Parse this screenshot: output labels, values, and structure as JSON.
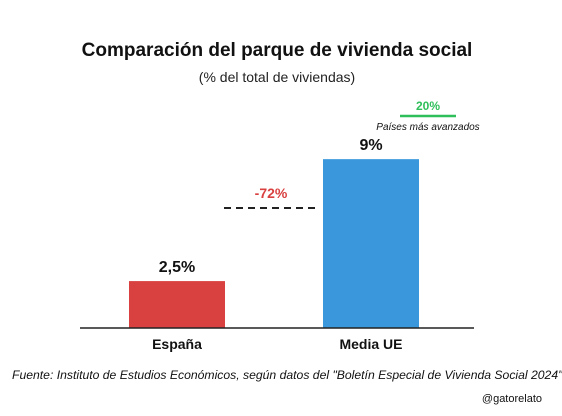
{
  "chart_data": {
    "type": "bar",
    "title": "Comparación del parque de vivienda social",
    "subtitle": "(% del total de viviendas)",
    "categories": [
      "España",
      "Media UE"
    ],
    "values": [
      2.5,
      9
    ],
    "value_labels": [
      "2,5%",
      "9%"
    ],
    "colors": [
      "#d94040",
      "#3b97dc"
    ],
    "ylim": [
      0,
      10.5
    ],
    "grid": false,
    "annotations": {
      "gap_label": "-72%",
      "gap_color": "#d94040",
      "reference_value": 20,
      "reference_label": "20%",
      "reference_color": "#2fbf5a",
      "reference_caption": "Países más avanzados"
    }
  },
  "footer": {
    "source": "Fuente: Instituto de Estudios Económicos, según datos del \"Boletín Especial de Vivienda Social 2024\"",
    "handle": "@gatorelato"
  }
}
